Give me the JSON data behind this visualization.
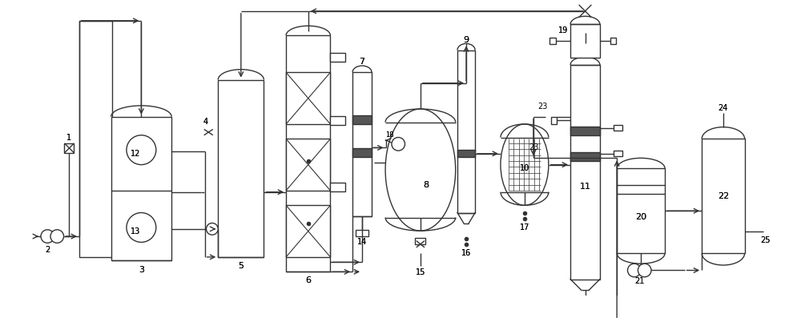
{
  "bg": "#ffffff",
  "lc": "#333333",
  "lw": 1.0
}
